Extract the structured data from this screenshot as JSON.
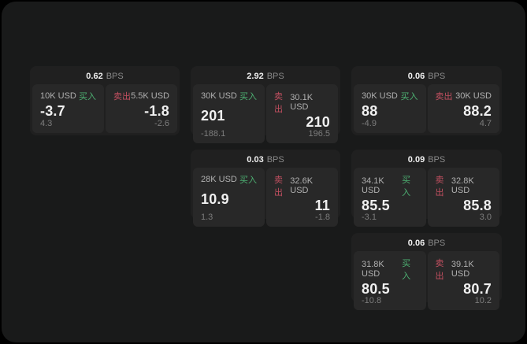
{
  "colors": {
    "window-bg": "#191a1a",
    "card-bg": "#202020",
    "panel-bg": "#282828",
    "buy-green": "#4db072",
    "sell-red": "#c14f60",
    "big-text": "#f0f0f0",
    "muted-text": "#b0b0b0",
    "bps-text": "#8a8a8a",
    "sub-text": "#7d7d7d"
  },
  "labels": {
    "bps": "BPS",
    "buy": "买入",
    "sell": "卖出"
  },
  "cards": [
    {
      "bps": "0.62",
      "buy": {
        "amount": "10K USD",
        "value": "-3.7",
        "sub": "4.3"
      },
      "sell": {
        "amount": "5.5K USD",
        "value": "-1.8",
        "sub": "-2.6"
      }
    },
    {
      "bps": "2.92",
      "buy": {
        "amount": "30K USD",
        "value": "201",
        "sub": "-188.1"
      },
      "sell": {
        "amount": "30.1K USD",
        "value": "210",
        "sub": "196.5"
      }
    },
    {
      "bps": "0.06",
      "buy": {
        "amount": "30K USD",
        "value": "88",
        "sub": "-4.9"
      },
      "sell": {
        "amount": "30K USD",
        "value": "88.2",
        "sub": "4.7"
      }
    },
    {
      "bps": "0.03",
      "buy": {
        "amount": "28K USD",
        "value": "10.9",
        "sub": "1.3"
      },
      "sell": {
        "amount": "32.6K USD",
        "value": "11",
        "sub": "-1.8"
      }
    },
    {
      "bps": "0.09",
      "buy": {
        "amount": "34.1K USD",
        "value": "85.5",
        "sub": "-3.1"
      },
      "sell": {
        "amount": "32.8K USD",
        "value": "85.8",
        "sub": "3.0"
      }
    },
    {
      "bps": "0.06",
      "buy": {
        "amount": "31.8K USD",
        "value": "80.5",
        "sub": "-10.8"
      },
      "sell": {
        "amount": "39.1K USD",
        "value": "80.7",
        "sub": "10.2"
      }
    }
  ]
}
